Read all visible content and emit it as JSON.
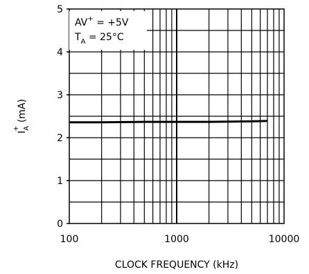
{
  "chart_data": {
    "type": "line",
    "xlabel": "CLOCK FREQUENCY (kHz)",
    "ylabel": {
      "base": "I",
      "sup": "+",
      "sub": "A",
      "unit": " (mA)"
    },
    "x_scale": "log",
    "xlim": [
      100,
      10000
    ],
    "ylim": [
      0,
      5
    ],
    "x_ticks": [
      100,
      1000,
      10000
    ],
    "x_tick_labels": [
      "100",
      "1000",
      "10000"
    ],
    "y_ticks": [
      0,
      1,
      2,
      3,
      4,
      5
    ],
    "y_tick_labels": [
      "0",
      "1",
      "2",
      "3",
      "4",
      "5"
    ],
    "y_gridlines": [
      0.5,
      1,
      1.5,
      2,
      2.5,
      3,
      3.5,
      4,
      4.5,
      5
    ],
    "grid": true,
    "annotation": {
      "line1": {
        "prefix": "AV",
        "sup": "+",
        "suffix": " = +5V"
      },
      "line2": {
        "prefix": "T",
        "sub": "A",
        "suffix": " = 25°C"
      }
    },
    "series": [
      {
        "x": [
          100,
          200,
          500,
          1000,
          2000,
          5000,
          7000
        ],
        "y": [
          2.36,
          2.36,
          2.37,
          2.37,
          2.37,
          2.38,
          2.39
        ]
      }
    ],
    "colors": {
      "line": "#000000",
      "grid": "#000000",
      "background": "#ffffff"
    }
  }
}
